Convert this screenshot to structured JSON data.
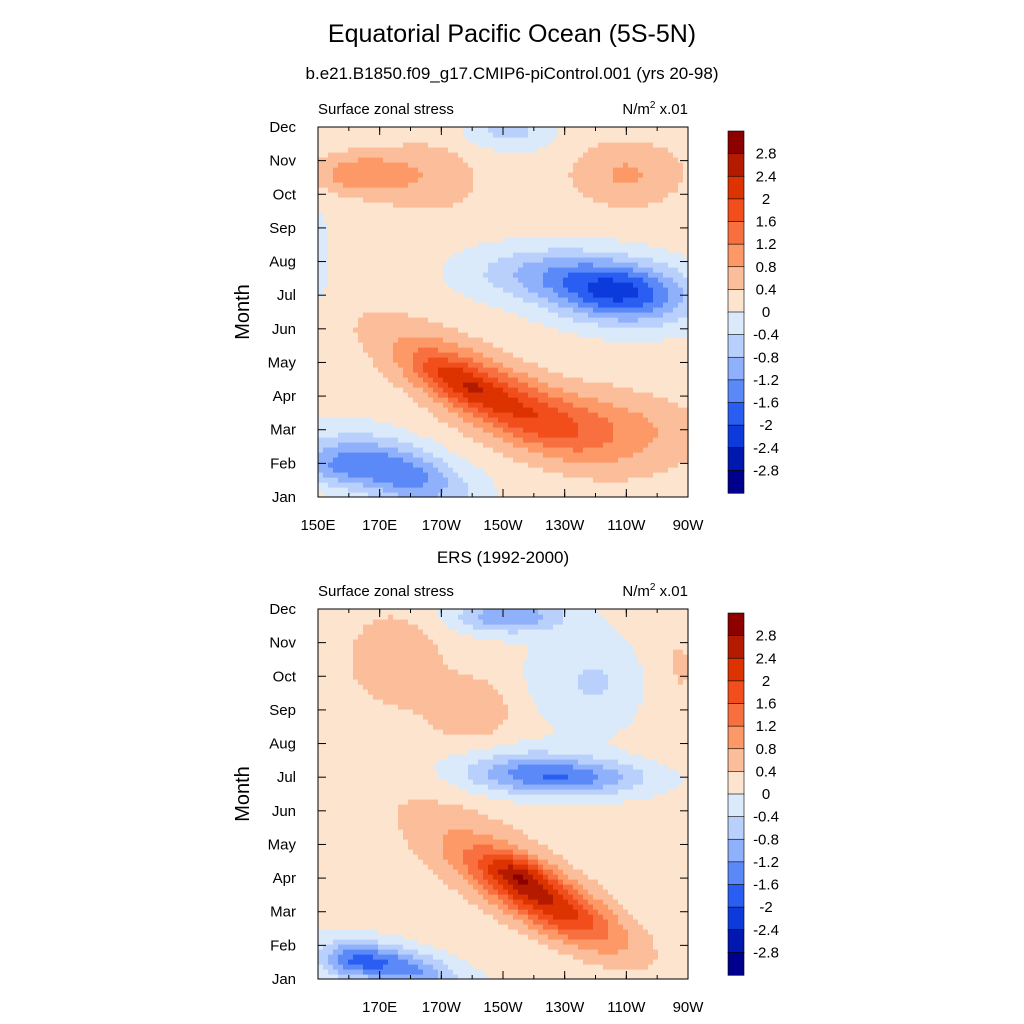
{
  "title": "Equatorial Pacific Ocean (5S-5N)",
  "subtitle": "b.e21.B1850.f09_g17.CMIP6-piControl.001 (yrs 20-98)",
  "colorbar_labels": [
    "2.8",
    "2.4",
    "2",
    "1.6",
    "1.2",
    "0.8",
    "0.4",
    "0",
    "-0.4",
    "-0.8",
    "-1.2",
    "-1.6",
    "-2",
    "-2.4",
    "-2.8"
  ],
  "colorbar_colors": [
    "#8c0000",
    "#b31a00",
    "#dd3300",
    "#f24e1c",
    "#f87040",
    "#fd9966",
    "#fbbd9a",
    "#fde4cf",
    "#dbeafb",
    "#b8d0fb",
    "#8fb0fb",
    "#5b8af8",
    "#2a5ef2",
    "#0d3adb",
    "#0018b0",
    "#00008c"
  ],
  "chart_data": [
    {
      "type": "heatmap",
      "name": "model",
      "left_label": "Surface zonal stress",
      "right_label": "N/m",
      "right_label_sup": "2",
      "right_label_suffix": " x.01",
      "ylabel": "Month",
      "yticks": [
        "Jan",
        "Feb",
        "Mar",
        "Apr",
        "May",
        "Jun",
        "Jul",
        "Aug",
        "Sep",
        "Oct",
        "Nov",
        "Dec"
      ],
      "xticks": [
        "150E",
        "170E",
        "170W",
        "150W",
        "130W",
        "110W",
        "90W"
      ],
      "xlim": [
        150,
        270
      ],
      "zlevels": [
        -2.8,
        -2.4,
        -2.0,
        -1.6,
        -1.2,
        -0.8,
        -0.4,
        0,
        0.4,
        0.8,
        1.2,
        1.6,
        2.0,
        2.4,
        2.8
      ],
      "blobs": [
        {
          "lon": 175,
          "m": 1.6,
          "a": 22,
          "b": 0.9,
          "rot": 0.5,
          "v": -1.7
        },
        {
          "lon": 155,
          "m": 1.7,
          "a": 10,
          "b": 0.6,
          "rot": 0.2,
          "v": -0.8
        },
        {
          "lon": 205,
          "m": 4.0,
          "a": 32,
          "b": 1.1,
          "rot": 0.9,
          "v": 1.5
        },
        {
          "lon": 195,
          "m": 4.3,
          "a": 14,
          "b": 0.6,
          "rot": 0.7,
          "v": 0.8
        },
        {
          "lon": 240,
          "m": 3.0,
          "a": 34,
          "b": 1.1,
          "rot": 0.2,
          "v": 0.9
        },
        {
          "lon": 248,
          "m": 7.0,
          "a": 22,
          "b": 0.9,
          "rot": 0.1,
          "v": -2.2
        },
        {
          "lon": 222,
          "m": 7.6,
          "a": 24,
          "b": 0.8,
          "rot": 0.0,
          "v": -0.9
        },
        {
          "lon": 185,
          "m": 10.5,
          "a": 18,
          "b": 1.1,
          "rot": 0.0,
          "v": 0.55
        },
        {
          "lon": 163,
          "m": 10.6,
          "a": 14,
          "b": 0.6,
          "rot": 0.0,
          "v": 0.9
        },
        {
          "lon": 250,
          "m": 10.6,
          "a": 18,
          "b": 1.0,
          "rot": 0.0,
          "v": 0.7
        },
        {
          "lon": 212,
          "m": 11.9,
          "a": 14,
          "b": 0.6,
          "rot": 0.0,
          "v": -0.7
        },
        {
          "lon": 150,
          "m": 8.0,
          "a": 4,
          "b": 1.5,
          "rot": 0.0,
          "v": -0.4
        }
      ],
      "base": 0.15
    },
    {
      "type": "heatmap",
      "name": "observation",
      "title": "ERS (1992-2000)",
      "left_label": "Surface zonal stress",
      "right_label": "N/m",
      "right_label_sup": "2",
      "right_label_suffix": " x.01",
      "ylabel": "Month",
      "yticks": [
        "Jan",
        "Feb",
        "Mar",
        "Apr",
        "May",
        "Jun",
        "Jul",
        "Aug",
        "Sep",
        "Oct",
        "Nov",
        "Dec"
      ],
      "xticks": [
        "170E",
        "170W",
        "150W",
        "130W",
        "110W",
        "90W"
      ],
      "xlim": [
        150,
        270
      ],
      "zlevels": [
        -2.8,
        -2.4,
        -2.0,
        -1.6,
        -1.2,
        -0.8,
        -0.4,
        0,
        0.4,
        0.8,
        1.2,
        1.6,
        2.0,
        2.4,
        2.8
      ],
      "blobs": [
        {
          "lon": 175,
          "m": 1.2,
          "a": 20,
          "b": 0.6,
          "rot": 0.4,
          "v": -1.6
        },
        {
          "lon": 160,
          "m": 1.3,
          "a": 10,
          "b": 0.5,
          "rot": 0.0,
          "v": -0.9
        },
        {
          "lon": 225,
          "m": 3.1,
          "a": 24,
          "b": 0.9,
          "rot": 0.9,
          "v": 1.9
        },
        {
          "lon": 215,
          "m": 4.0,
          "a": 10,
          "b": 0.5,
          "rot": 0.5,
          "v": 0.8
        },
        {
          "lon": 205,
          "m": 4.5,
          "a": 30,
          "b": 1.3,
          "rot": 0.9,
          "v": 0.6
        },
        {
          "lon": 230,
          "m": 6.9,
          "a": 26,
          "b": 0.55,
          "rot": 0.0,
          "v": -1.5
        },
        {
          "lon": 215,
          "m": 7.3,
          "a": 22,
          "b": 0.6,
          "rot": 0.0,
          "v": -0.6
        },
        {
          "lon": 240,
          "m": 9.8,
          "a": 22,
          "b": 1.4,
          "rot": 0.0,
          "v": -0.6
        },
        {
          "lon": 212,
          "m": 11.8,
          "a": 18,
          "b": 0.5,
          "rot": 0.0,
          "v": -1.3
        },
        {
          "lon": 175,
          "m": 10.5,
          "a": 16,
          "b": 1.5,
          "rot": 0.0,
          "v": 0.55
        },
        {
          "lon": 200,
          "m": 9.0,
          "a": 14,
          "b": 1.0,
          "rot": 0.0,
          "v": 0.6
        },
        {
          "lon": 265,
          "m": 10.0,
          "a": 12,
          "b": 2.0,
          "rot": 0.0,
          "v": 0.4
        }
      ],
      "base": 0.15
    }
  ]
}
